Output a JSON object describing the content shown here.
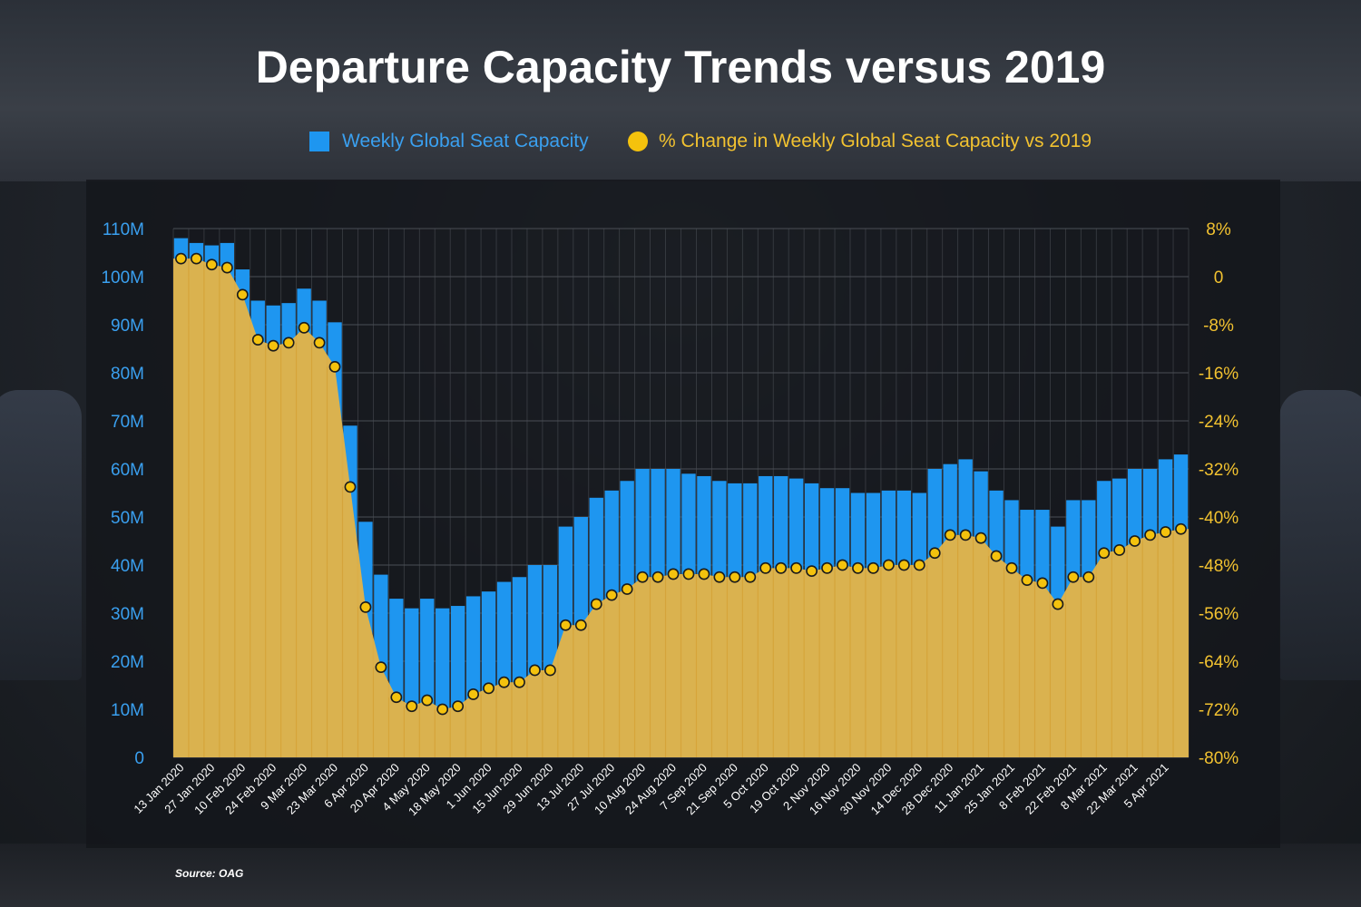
{
  "title": "Departure Capacity Trends versus 2019",
  "source": "Source: OAG",
  "colors": {
    "bar": "#1e96f0",
    "area": "#e0b349",
    "dot": "#f4c20d",
    "left_axis_text": "#3aa0f0",
    "right_axis_text": "#f2c230",
    "grid": "#4a4e55"
  },
  "legend": {
    "bar_label": "Weekly Global Seat Capacity",
    "dot_label": "% Change in Weekly Global Seat Capacity vs 2019"
  },
  "chart_data": {
    "type": "bar",
    "grid": true,
    "legend_position": "top",
    "categories": [
      "13 Jan 2020",
      "20 Jan 2020",
      "27 Jan 2020",
      "3 Feb 2020",
      "10 Feb 2020",
      "17 Feb 2020",
      "24 Feb 2020",
      "2 Mar 2020",
      "9 Mar 2020",
      "16 Mar 2020",
      "23 Mar 2020",
      "30 Mar 2020",
      "6 Apr 2020",
      "13 Apr 2020",
      "20 Apr 2020",
      "27 Apr 2020",
      "4 May 2020",
      "11 May 2020",
      "18 May 2020",
      "25 May 2020",
      "1 Jun 2020",
      "8 Jun 2020",
      "15 Jun 2020",
      "22 Jun 2020",
      "29 Jun 2020",
      "6 Jul 2020",
      "13 Jul 2020",
      "20 Jul 2020",
      "27 Jul 2020",
      "3 Aug 2020",
      "10 Aug 2020",
      "17 Aug 2020",
      "24 Aug 2020",
      "31 Aug 2020",
      "7 Sep 2020",
      "14 Sep 2020",
      "21 Sep 2020",
      "28 Sep 2020",
      "5 Oct 2020",
      "12 Oct 2020",
      "19 Oct 2020",
      "26 Oct 2020",
      "2 Nov 2020",
      "9 Nov 2020",
      "16 Nov 2020",
      "23 Nov 2020",
      "30 Nov 2020",
      "7 Dec 2020",
      "14 Dec 2020",
      "21 Dec 2020",
      "28 Dec 2020",
      "4 Jan 2021",
      "11 Jan 2021",
      "18 Jan 2021",
      "25 Jan 2021",
      "1 Feb 2021",
      "8 Feb 2021",
      "15 Feb 2021",
      "22 Feb 2021",
      "1 Mar 2021",
      "8 Mar 2021",
      "15 Mar 2021",
      "22 Mar 2021",
      "29 Mar 2021",
      "5 Apr 2021",
      "12 Apr 2021"
    ],
    "x_tick_labels": [
      "13 Jan 2020",
      "27 Jan 2020",
      "10 Feb 2020",
      "24 Feb 2020",
      "9 Mar 2020",
      "23 Mar 2020",
      "6 Apr 2020",
      "20 Apr 2020",
      "4 May 2020",
      "18 May 2020",
      "1 Jun 2020",
      "15 Jun 2020",
      "29 Jun 2020",
      "13 Jul 2020",
      "27 Jul 2020",
      "10 Aug 2020",
      "24 Aug 2020",
      "7 Sep 2020",
      "21 Sep 2020",
      "5 Oct 2020",
      "19 Oct 2020",
      "2 Nov 2020",
      "16 Nov 2020",
      "30 Nov 2020",
      "14 Dec 2020",
      "28 Dec 2020",
      "11 Jan 2021",
      "25 Jan 2021",
      "8 Feb 2021",
      "22 Feb 2021",
      "8 Mar 2021",
      "22 Mar 2021",
      "5 Apr 2021"
    ],
    "left_axis": {
      "ylim": [
        0,
        110
      ],
      "ticks": [
        0,
        10,
        20,
        30,
        40,
        50,
        60,
        70,
        80,
        90,
        100,
        110
      ],
      "tick_labels": [
        "0",
        "10M",
        "20M",
        "30M",
        "40M",
        "50M",
        "60M",
        "70M",
        "80M",
        "90M",
        "100M",
        "110M"
      ]
    },
    "right_axis": {
      "ylim": [
        -80,
        8
      ],
      "ticks": [
        -80,
        -72,
        -64,
        -56,
        -48,
        -40,
        -32,
        -24,
        -16,
        -8,
        0,
        8
      ],
      "tick_labels": [
        "-80%",
        "-72%",
        "-64%",
        "-56%",
        "-48%",
        "-40%",
        "-32%",
        "-24%",
        "-16%",
        "-8%",
        "0",
        "8%"
      ]
    },
    "series": [
      {
        "name": "Weekly Global Seat Capacity",
        "type": "bar",
        "axis": "left",
        "values": [
          108,
          107,
          106.5,
          107,
          101.5,
          95,
          94,
          94.5,
          97.5,
          95,
          90.5,
          69,
          49,
          38,
          33,
          31,
          33,
          31,
          31.5,
          33.5,
          34.5,
          36.5,
          37.5,
          40,
          40,
          48,
          50,
          54,
          55.5,
          57.5,
          60,
          60,
          60,
          59,
          58.5,
          57.5,
          57,
          57,
          58.5,
          58.5,
          58,
          57,
          56,
          56,
          55,
          55,
          55.5,
          55.5,
          55,
          60,
          61,
          62,
          59.5,
          55.5,
          53.5,
          51.5,
          51.5,
          48,
          53.5,
          53.5,
          57.5,
          58,
          60,
          60,
          62,
          63
        ]
      },
      {
        "name": "% Change in Weekly Global Seat Capacity vs 2019",
        "type": "area+scatter",
        "axis": "right",
        "values": [
          3,
          3,
          2,
          1.5,
          -3,
          -10.5,
          -11.5,
          -11,
          -8.5,
          -11,
          -15,
          -35,
          -55,
          -65,
          -70,
          -71.5,
          -70.5,
          -72,
          -71.5,
          -69.5,
          -68.5,
          -67.5,
          -67.5,
          -65.5,
          -65.5,
          -58,
          -58,
          -54.5,
          -53,
          -52,
          -50,
          -50,
          -49.5,
          -49.5,
          -49.5,
          -50,
          -50,
          -50,
          -48.5,
          -48.5,
          -48.5,
          -49,
          -48.5,
          -48,
          -48.5,
          -48.5,
          -48,
          -48,
          -48,
          -46,
          -43,
          -43,
          -43.5,
          -46.5,
          -48.5,
          -50.5,
          -51,
          -54.5,
          -50,
          -50,
          -46,
          -45.5,
          -44,
          -43,
          -42.5,
          -42
        ]
      }
    ]
  }
}
